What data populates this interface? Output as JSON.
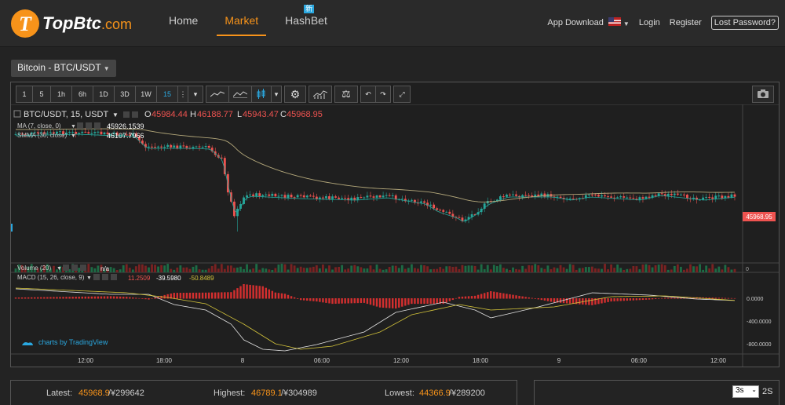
{
  "brand": {
    "name": "TopBtc",
    "suffix": ".com"
  },
  "nav": {
    "home": "Home",
    "market": "Market",
    "hashbet": "HashBet",
    "new_badge": "新"
  },
  "header_right": {
    "app_download": "App Download",
    "login": "Login",
    "register": "Register",
    "lost_password": "Lost Password?"
  },
  "pair": "Bitcoin - BTC/USDT",
  "toolbar": {
    "intervals": [
      "1",
      "5",
      "1h",
      "6h",
      "1D",
      "3D",
      "1W",
      "15"
    ],
    "active_interval": "15"
  },
  "legend": {
    "symbol": "BTC/USDT, 15, USDT",
    "open_label": "O",
    "open": "45984.44",
    "high_label": "H",
    "high": "46188.77",
    "low_label": "L",
    "low": "45943.47",
    "close_label": "C",
    "close": "45968.95",
    "ma_label": "MA (7, close, 0)",
    "ma_value": "45926.1539",
    "smma_label": "SMMA (30, close)",
    "smma_value": "46107.7966",
    "volume_label": "Volume (20)",
    "volume_value": "n/a",
    "macd_label": "MACD (15, 26, close, 9)",
    "macd_v1": "11.2509",
    "macd_v2": "-39.5980",
    "macd_v3": "-50.8489",
    "attribution": "charts by TradingView"
  },
  "price_tag": "45968.95",
  "macd_axis": [
    "0.0000",
    "-400.0000",
    "-800.0000"
  ],
  "volume_axis": "0",
  "time_axis": [
    "12:00",
    "18:00",
    "8",
    "06:00",
    "12:00",
    "18:00",
    "9",
    "06:00",
    "12:00"
  ],
  "stats": {
    "latest_label": "Latest:",
    "latest_value": "45968.9",
    "latest_cny": "/¥299642",
    "highest_label": "Highest:",
    "highest_value": "46789.1",
    "highest_cny": "/¥304989",
    "lowest_label": "Lowest:",
    "lowest_value": "44366.9",
    "lowest_cny": "/¥289200"
  },
  "refresh": {
    "selected": "3s",
    "unit": "2S"
  },
  "colors": {
    "accent": "#f7931a",
    "up": "#26a69a",
    "down": "#ef5350",
    "active_blue": "#2aa8e0"
  }
}
